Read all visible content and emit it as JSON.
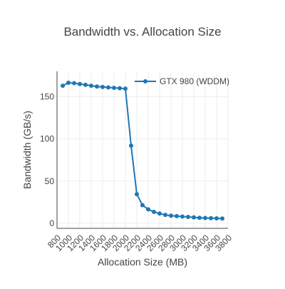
{
  "chart_data": {
    "type": "line",
    "title": "Bandwidth vs. Allocation Size",
    "xlabel": "Allocation Size (MB)",
    "ylabel": "Bandwidth (GB/s)",
    "xlim": [
      800,
      3800
    ],
    "ylim": [
      -6,
      180
    ],
    "x_ticks": [
      800,
      1000,
      1200,
      1400,
      1600,
      1800,
      2000,
      2200,
      2400,
      2600,
      2800,
      3000,
      3200,
      3400,
      3600,
      3800
    ],
    "y_ticks": [
      0,
      50,
      100,
      150
    ],
    "grid": true,
    "legend_position": "top-right",
    "series": [
      {
        "name": "GTX 980 (WDDM)",
        "color": "#1f77b4",
        "x": [
          900,
          1000,
          1100,
          1200,
          1300,
          1400,
          1500,
          1600,
          1700,
          1800,
          1900,
          2000,
          2100,
          2200,
          2300,
          2400,
          2500,
          2600,
          2700,
          2800,
          2900,
          3000,
          3100,
          3200,
          3300,
          3400,
          3500,
          3600,
          3700
        ],
        "values": [
          163,
          166.5,
          166,
          165,
          164,
          163,
          162,
          161.5,
          161,
          160.5,
          160,
          159.5,
          92,
          34.5,
          21.5,
          16.5,
          13.5,
          11.5,
          10,
          9,
          8.5,
          8,
          7.5,
          7,
          6.5,
          6.3,
          6,
          5.8,
          5.6
        ]
      }
    ]
  }
}
